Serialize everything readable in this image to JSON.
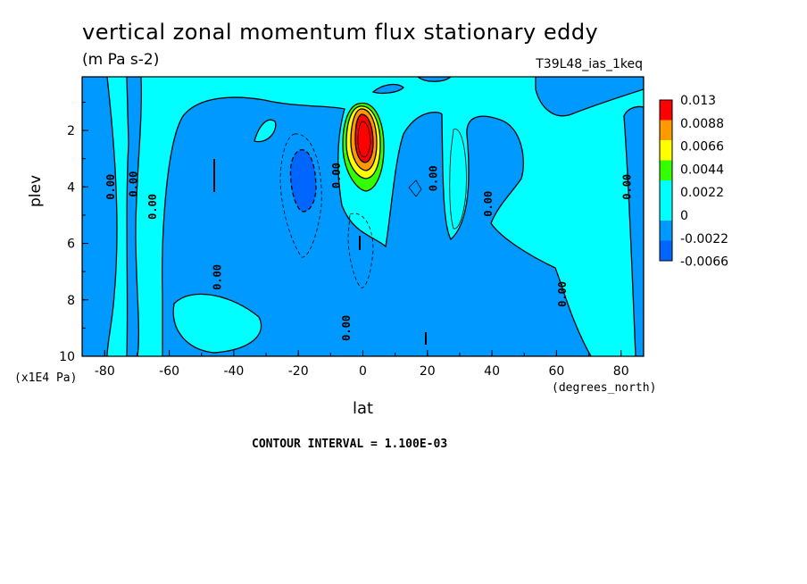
{
  "header": {
    "title": "vertical zonal momentum flux stationary eddy",
    "units": "(m Pa s-2)",
    "dataset": "T39L48_ias_1keq"
  },
  "axes": {
    "ylabel": "plev",
    "yunits": "(x1E4 Pa)",
    "xlabel": "lat",
    "xunits": "(degrees_north)"
  },
  "footnote": "CONTOUR INTERVAL = 1.100E-03",
  "colors": {
    "background": "#00ffff",
    "negative_light": "#0099ff",
    "negative_dark": "#0066ff",
    "positive_green": "#33ff00",
    "positive_yellow": "#ffff00",
    "positive_orange": "#ff9900",
    "positive_red": "#ff0000"
  },
  "chart_data": {
    "type": "heatmap",
    "style": "filled contour plot",
    "x_ticks": [
      -80,
      -60,
      -40,
      -20,
      0,
      20,
      40,
      60,
      80
    ],
    "y_ticks": [
      2,
      4,
      6,
      8,
      10
    ],
    "xlim": [
      -87,
      87
    ],
    "ylim": [
      10,
      0.1
    ],
    "y_inverted": true,
    "colorbar": {
      "labels": [
        "0.013",
        "0.0088",
        "0.0066",
        "0.0044",
        "0.0022",
        "0",
        "-0.0022",
        "-0.0066"
      ],
      "colors": [
        "#ff0000",
        "#ff9900",
        "#ffff00",
        "#33ff00",
        "#00ffff",
        "#00ffff",
        "#0099ff",
        "#0066ff"
      ]
    },
    "contour_labels": [
      {
        "text": "0.00",
        "lat": -77,
        "plev": 4.0
      },
      {
        "text": "0.00",
        "lat": -70,
        "plev": 3.9
      },
      {
        "text": "0.00",
        "lat": -64,
        "plev": 4.7
      },
      {
        "text": "0.00",
        "lat": -44,
        "plev": 7.2
      },
      {
        "text": "0.00",
        "lat": -4,
        "plev": 9.0
      },
      {
        "text": "0.00",
        "lat": -7,
        "plev": 3.6
      },
      {
        "text": "0.00",
        "lat": 23,
        "plev": 3.7
      },
      {
        "text": "0.00",
        "lat": 40,
        "plev": 4.6
      },
      {
        "text": "0.00",
        "lat": 63,
        "plev": 7.8
      },
      {
        "text": "0.00",
        "lat": 83,
        "plev": 4.0
      }
    ],
    "grid": false,
    "legend_placement": "right"
  }
}
